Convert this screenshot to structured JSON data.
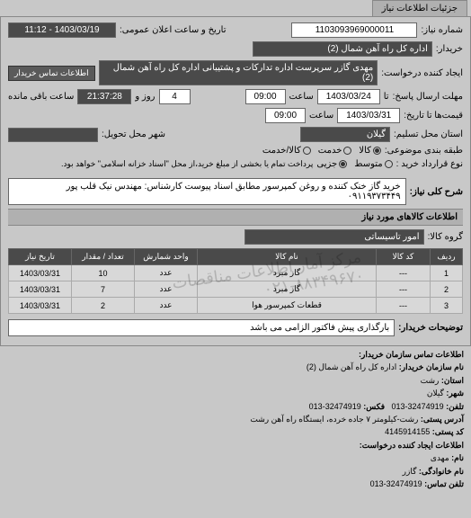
{
  "tab": {
    "label": "جزئیات اطلاعات نیاز"
  },
  "header": {
    "req_no_label": "شماره نیاز:",
    "req_no": "1103093969000011",
    "public_dt_label": "تاریخ و ساعت اعلان عمومی:",
    "public_dt": "1403/03/19 - 11:12",
    "buyer_label": "خریدار:",
    "buyer": "اداره کل راه آهن شمال (2)",
    "requestor_label": "ایجاد کننده درخواست:",
    "requestor": "مهدی گازر سرپرست اداره تدارکات و پشتیبانی اداره کل راه آهن شمال (2)",
    "contact_btn": "اطلاعات تماس خریدار",
    "send_deadline_label": "مهلت ارسال پاسخ:",
    "send_deadline_from": "تا",
    "send_date": "1403/03/24",
    "send_time_label": "ساعت",
    "send_time": "09:00",
    "days_label": "روز و",
    "days": "4",
    "remain_time": "21:37:28",
    "remain_label": "ساعت باقی مانده",
    "price_until_label": "قیمت‌ها تا تاریخ:",
    "price_date": "1403/03/31",
    "price_time_label": "ساعت",
    "price_time": "09:00",
    "province_label": "استان محل تسلیم:",
    "province": "گیلان",
    "city_label": "شهر محل تحویل:",
    "group_label": "طبقه بندی موضوعی:",
    "radios": [
      "کالا",
      "خدمت",
      "کالا/خدمت"
    ],
    "radio_selected": 0,
    "contract_label": "نوع قرارداد خرید :",
    "contract_radios": [
      "متوسط",
      "جزیی"
    ],
    "contract_selected": 1,
    "contract_note": "پرداخت تمام یا بخشی از مبلغ خرید،از محل \"اسناد خزانه اسلامی\" خواهد بود."
  },
  "need": {
    "title_label": "شرح کلی نیاز:",
    "title": "خرید گاز خنک کننده و روغن کمپرسور مطابق اسناد پیوست کارشناس: مهندس نیک قلب پور ۰۹۱۱۹۳۷۳۴۴۹"
  },
  "goods_section": {
    "heading": "اطلاعات کالاهای مورد نیاز",
    "group_label": "گروه کالا:",
    "group": "امور تاسیساتی"
  },
  "table": {
    "columns": [
      "ردیف",
      "کد کالا",
      "نام کالا",
      "واحد شمارش",
      "تعداد / مقدار",
      "تاریخ نیاز"
    ],
    "rows": [
      [
        "1",
        "---",
        "گاز مبرد",
        "عدد",
        "10",
        "1403/03/31"
      ],
      [
        "2",
        "---",
        "گاز مبرد",
        "عدد",
        "7",
        "1403/03/31"
      ],
      [
        "3",
        "---",
        "قطعات کمپرسور هوا",
        "عدد",
        "2",
        "1403/03/31"
      ]
    ],
    "col_widths": [
      "36px",
      "60px",
      "auto",
      "70px",
      "70px",
      "70px"
    ]
  },
  "buyer_notes": {
    "label": "توضیحات خریدار:",
    "value": "بارگذاری پیش فاکتور الزامی می باشد"
  },
  "footer": {
    "heading": "اطلاعات تماس سازمان خریدار:",
    "org_label": "نام سازمان خریدار:",
    "org": "اداره کل راه آهن شمال (2)",
    "prov_label": "استان:",
    "prov": "رشت",
    "city_label": "شهر:",
    "city": "گیلان",
    "tel_label": "تلفن:",
    "tel": "32474919-013",
    "fax_label": "فکس:",
    "fax": "32474919-013",
    "addr_label": "آدرس پستی:",
    "addr": "رشت-کیلومتر ۷ جاده خرده، ایستگاه راه آهن رشت",
    "post_label": "کد پستی:",
    "post": "4145914155",
    "req_heading": "اطلاعات ایجاد کننده درخواست:",
    "name_label": "نام:",
    "name": "مهدی",
    "fam_label": "نام خانوادگی:",
    "fam": "گازر",
    "phone_label": "تلفن تماس:",
    "phone": "32474919-013"
  },
  "watermark": "مرکز آمار اطلاعات مناقصات\n۰۲۱-۸۸۳۴۹۶۷۰"
}
